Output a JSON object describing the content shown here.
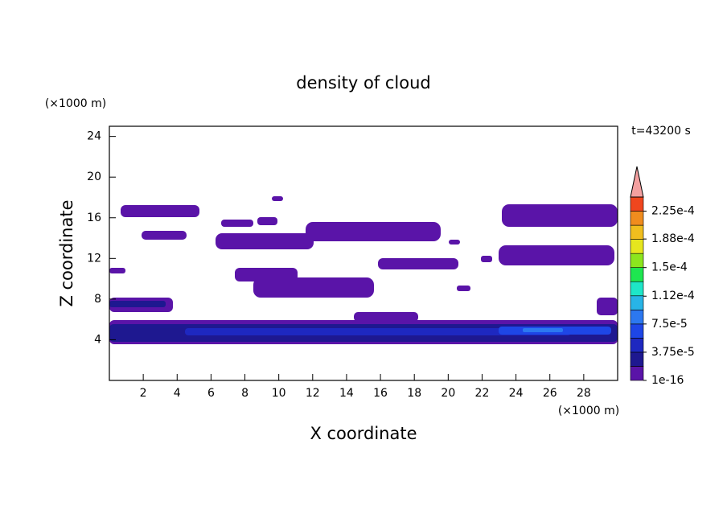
{
  "chart_data": {
    "type": "contour",
    "title": "density of cloud",
    "x_label": "X coordinate",
    "y_label": "Z coordinate",
    "x_unit": "(×1000 m)",
    "y_unit": "(×1000 m)",
    "time_label": "t=43200 s",
    "xlim": [
      0,
      30
    ],
    "xticks": [
      2,
      4,
      6,
      8,
      10,
      12,
      14,
      16,
      18,
      20,
      22,
      24,
      26,
      28
    ],
    "ylim": [
      0,
      25
    ],
    "yticks": [
      4,
      8,
      12,
      16,
      20,
      24
    ],
    "colorbar": {
      "clim": [
        1e-16,
        0.00024375
      ],
      "ticks": [
        {
          "value": 1e-16,
          "label": "1e-16"
        },
        {
          "value": 3.75e-05,
          "label": "3.75e-5"
        },
        {
          "value": 7.5e-05,
          "label": "7.5e-5"
        },
        {
          "value": 0.000112,
          "label": "1.12e-4"
        },
        {
          "value": 0.00015,
          "label": "1.5e-4"
        },
        {
          "value": 0.000188,
          "label": "1.88e-4"
        },
        {
          "value": 0.000225,
          "label": "2.25e-4"
        }
      ],
      "colors": [
        "#5a14a8",
        "#1e1890",
        "#1e28c0",
        "#1e46e6",
        "#2c78f0",
        "#28b4e6",
        "#1ee6c8",
        "#1ee650",
        "#8ce61e",
        "#e6e61e",
        "#f0be1e",
        "#f08c1e",
        "#f0461e"
      ],
      "extend_color": "#f4a0a0"
    }
  }
}
